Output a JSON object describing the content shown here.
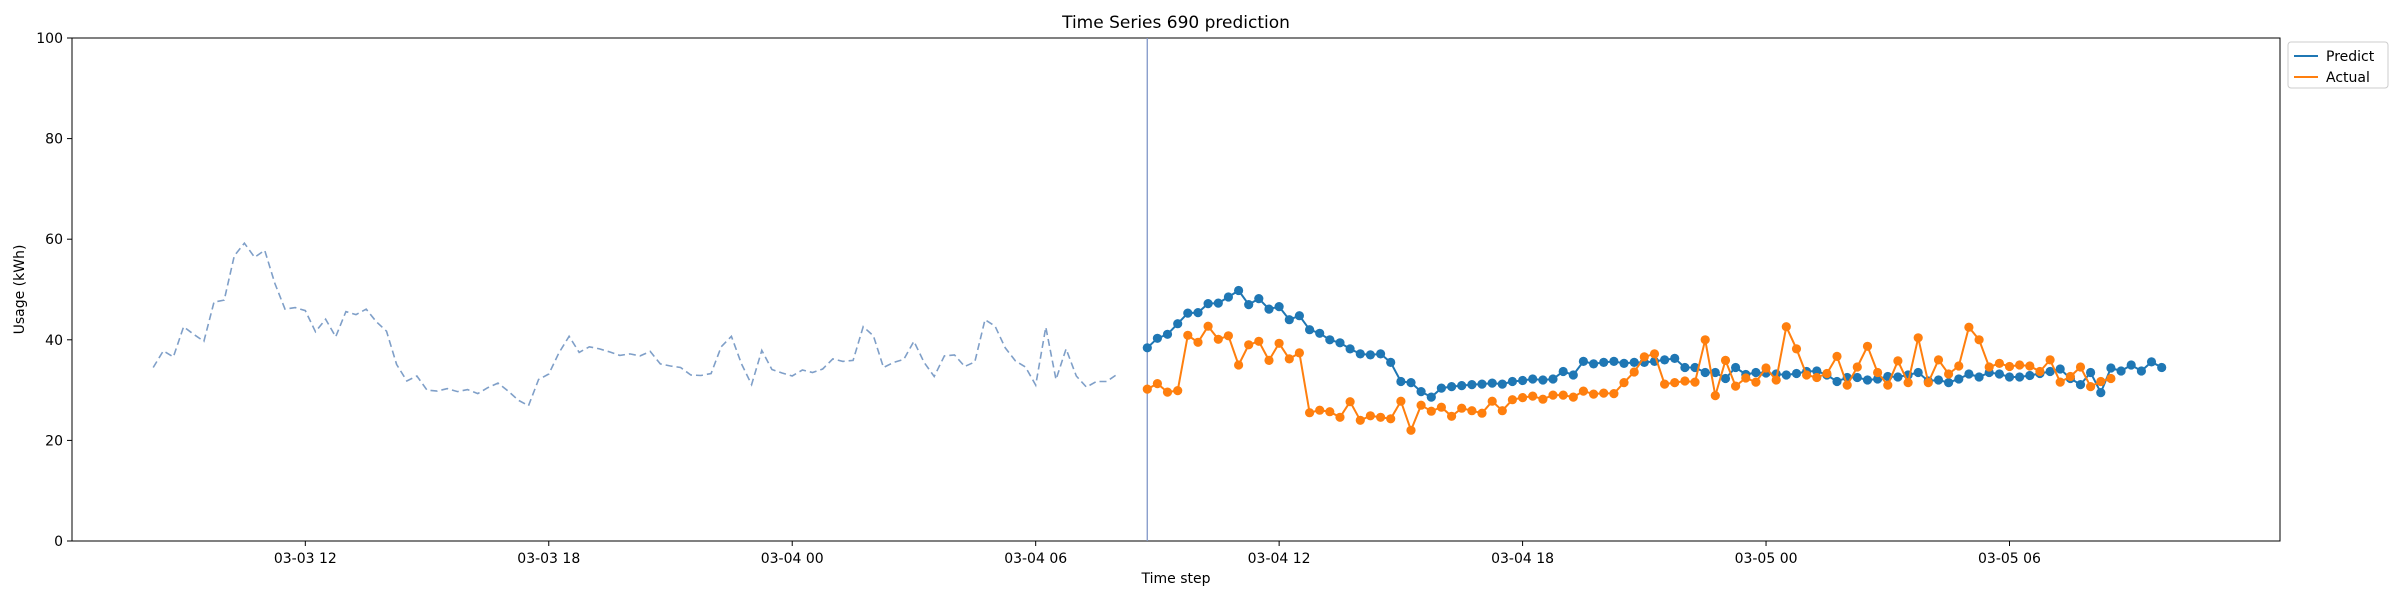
{
  "chart_data": {
    "type": "line",
    "title": "Time Series 690 prediction",
    "xlabel": "Time step",
    "ylabel": "Usage (kWh)",
    "ylim": [
      0,
      100
    ],
    "yticks": [
      0,
      20,
      40,
      60,
      80,
      100
    ],
    "xlim": [
      "2024-03-03 06:15",
      "2024-03-05 12:40"
    ],
    "xticks": [
      {
        "t": "2024-03-03 12:00",
        "label": "03-03 12"
      },
      {
        "t": "2024-03-03 18:00",
        "label": "03-03 18"
      },
      {
        "t": "2024-03-04 00:00",
        "label": "03-04 00"
      },
      {
        "t": "2024-03-04 06:00",
        "label": "03-04 06"
      },
      {
        "t": "2024-03-04 12:00",
        "label": "03-04 12"
      },
      {
        "t": "2024-03-04 18:00",
        "label": "03-04 18"
      },
      {
        "t": "2024-03-05 00:00",
        "label": "03-05 00"
      },
      {
        "t": "2024-03-05 06:00",
        "label": "03-05 06"
      }
    ],
    "forecast_start": "2024-03-04 08:45",
    "legend_position": "top-right",
    "colors": {
      "predict": "#1f77b4",
      "actual": "#ff7f0e",
      "history": "#7f9fc8",
      "divider": "#8096c8"
    },
    "history": {
      "start": "2024-03-03 08:15",
      "step_minutes": 15,
      "values": [
        34.5,
        37.8,
        36.6,
        42.6,
        41.1,
        39.7,
        47.5,
        47.9,
        56.7,
        59.2,
        56.4,
        57.8,
        51.2,
        46.1,
        46.4,
        45.8,
        41.6,
        44.1,
        40.6,
        45.6,
        45.0,
        46.1,
        43.6,
        41.7,
        35.1,
        31.8,
        32.8,
        30.0,
        29.8,
        30.3,
        29.7,
        30.1,
        29.3,
        30.5,
        31.4,
        29.8,
        28.0,
        26.9,
        32.1,
        33.2,
        37.4,
        40.7,
        37.5,
        38.6,
        38.2,
        37.6,
        36.9,
        37.2,
        36.8,
        37.7,
        35.2,
        34.8,
        34.5,
        33.0,
        32.9,
        33.3,
        38.6,
        40.7,
        35.2,
        31.1,
        37.9,
        34.1,
        33.4,
        32.8,
        34.0,
        33.5,
        34.2,
        36.2,
        35.7,
        35.9,
        42.6,
        40.8,
        34.5,
        35.5,
        36.1,
        39.7,
        35.5,
        32.7,
        36.8,
        37.0,
        34.7,
        35.6,
        44.0,
        42.7,
        38.4,
        35.8,
        34.6,
        31.0,
        42.5,
        32.1,
        38.2,
        32.8,
        30.6,
        31.7,
        31.7,
        33.1
      ]
    },
    "series": [
      {
        "name": "Predict",
        "start": "2024-03-04 08:45",
        "step_minutes": 15,
        "values": [
          38.4,
          40.3,
          41.1,
          43.2,
          45.3,
          45.4,
          47.2,
          47.3,
          48.5,
          49.8,
          47.0,
          48.2,
          46.1,
          46.6,
          44.0,
          44.8,
          42.0,
          41.3,
          40.0,
          39.4,
          38.2,
          37.2,
          37.0,
          37.2,
          35.5,
          31.7,
          31.5,
          29.7,
          28.6,
          30.4,
          30.7,
          30.9,
          31.1,
          31.2,
          31.4,
          31.2,
          31.7,
          31.9,
          32.2,
          32.0,
          32.2,
          33.7,
          33.0,
          35.7,
          35.2,
          35.5,
          35.7,
          35.3,
          35.5,
          35.5,
          35.7,
          36.0,
          36.3,
          34.5,
          34.5,
          33.5,
          33.5,
          32.3,
          34.5,
          33.1,
          33.5,
          33.4,
          33.2,
          33.0,
          33.3,
          33.7,
          33.8,
          33.0,
          31.7,
          32.5,
          32.5,
          32.0,
          32.2,
          32.7,
          32.6,
          33.0,
          33.5,
          31.8,
          32.0,
          31.5,
          32.2,
          33.2,
          32.6,
          33.5,
          33.2,
          32.6,
          32.6,
          32.9,
          33.3,
          33.7,
          34.2,
          32.3,
          31.1,
          33.5,
          29.5,
          34.4,
          33.8,
          35.0,
          33.8,
          35.6,
          34.5
        ]
      },
      {
        "name": "Actual",
        "start": "2024-03-04 08:45",
        "step_minutes": 15,
        "values": [
          30.2,
          31.3,
          29.6,
          29.9,
          40.9,
          39.5,
          42.7,
          40.1,
          40.8,
          35.0,
          39.0,
          39.7,
          35.9,
          39.3,
          36.2,
          37.4,
          25.5,
          26.0,
          25.7,
          24.6,
          27.7,
          24.0,
          24.9,
          24.6,
          24.3,
          27.8,
          22.0,
          27.0,
          25.8,
          26.6,
          24.8,
          26.4,
          25.9,
          25.4,
          27.8,
          25.9,
          28.1,
          28.5,
          28.8,
          28.2,
          29.0,
          29.0,
          28.6,
          29.8,
          29.2,
          29.4,
          29.3,
          31.5,
          33.6,
          36.6,
          37.2,
          31.2,
          31.5,
          31.8,
          31.6,
          40.0,
          28.9,
          35.9,
          30.8,
          32.4,
          31.6,
          34.4,
          32.0,
          42.6,
          38.2,
          33.0,
          32.5,
          33.3,
          36.7,
          31.0,
          34.6,
          38.7,
          33.5,
          31.0,
          35.8,
          31.5,
          40.4,
          31.5,
          36.0,
          33.2,
          34.8,
          42.5,
          40.0,
          34.6,
          35.3,
          34.7,
          35.0,
          34.8,
          33.7,
          36.0,
          31.6,
          32.7,
          34.6,
          30.7,
          31.7,
          32.3
        ]
      }
    ]
  }
}
